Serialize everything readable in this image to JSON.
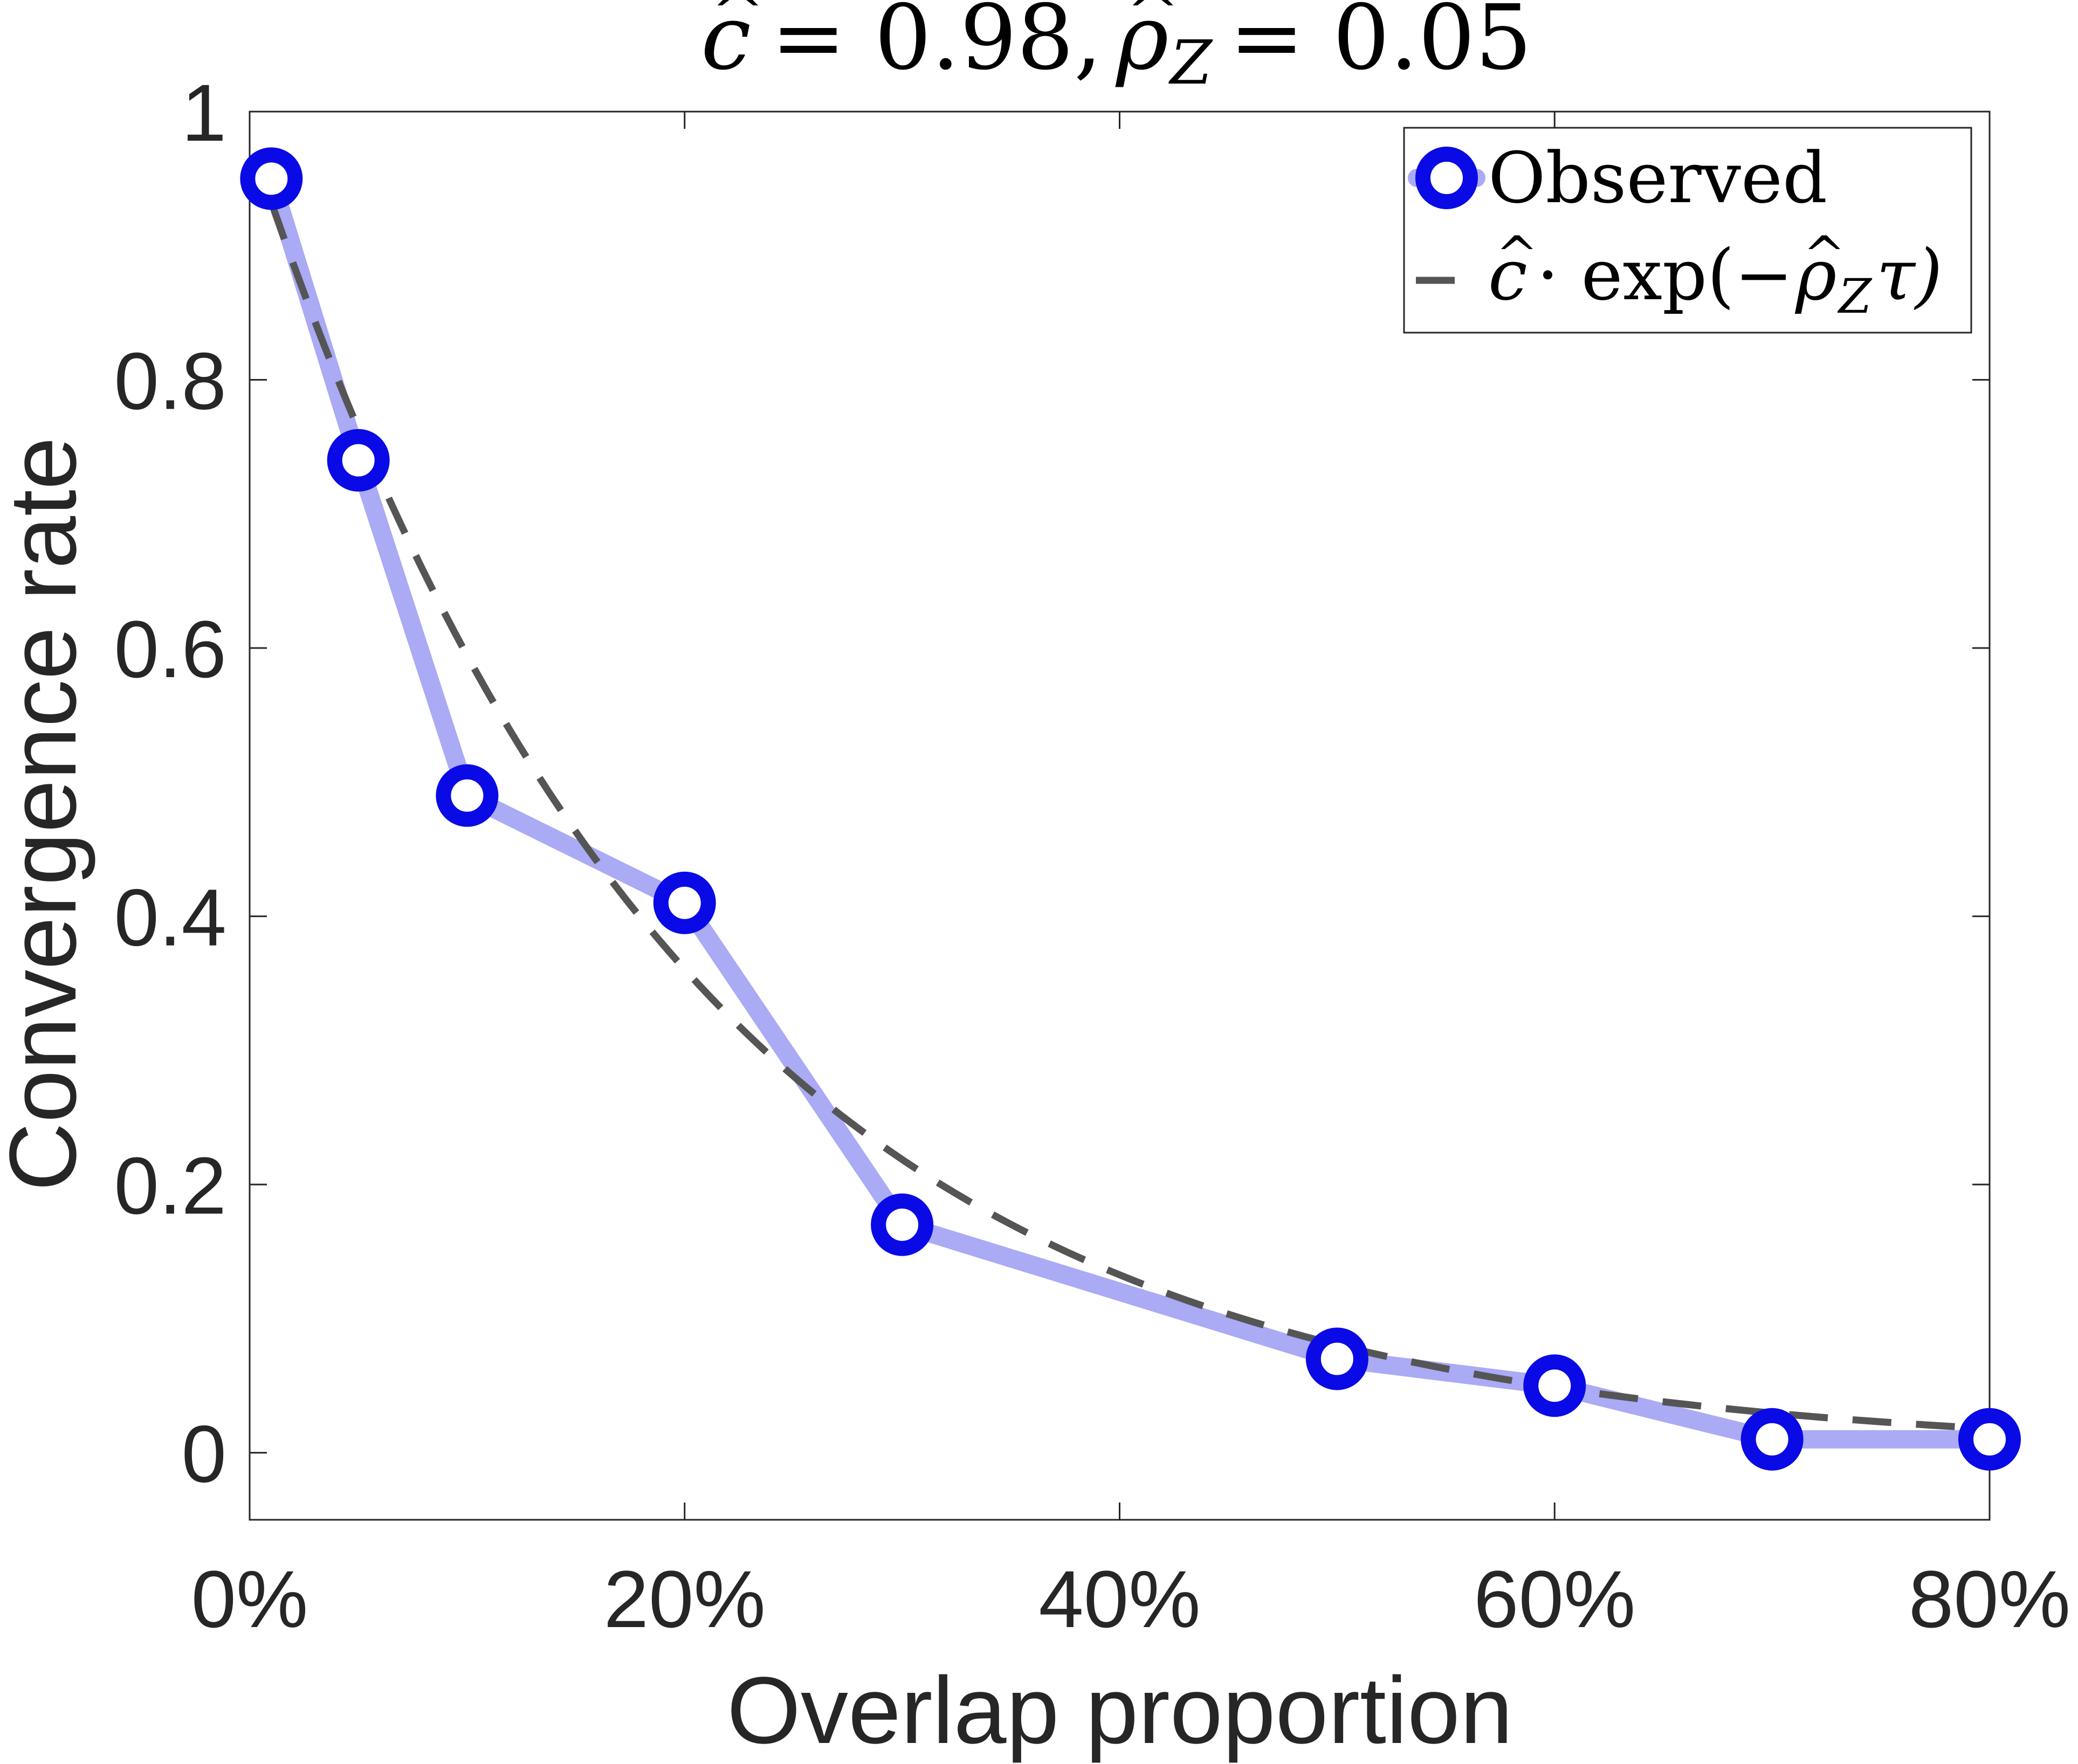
{
  "chart_data": {
    "type": "line",
    "title": "ĉ = 0.98, ρ̂_Z = 0.05",
    "title_parts": {
      "c_sym": "c",
      "eq1": "= 0.98,",
      "rho_sym": "ρ",
      "rho_sub": "Z",
      "eq2": "= 0.05"
    },
    "xlabel": "Overlap proportion",
    "ylabel": "Convergence rate",
    "xlim": [
      0,
      80
    ],
    "ylim": [
      -0.05,
      1
    ],
    "x_ticks": [
      0,
      20,
      40,
      60,
      80
    ],
    "x_tick_labels": [
      "0%",
      "20%",
      "40%",
      "60%",
      "80%"
    ],
    "y_ticks": [
      0,
      0.2,
      0.4,
      0.6,
      0.8,
      1
    ],
    "y_tick_labels": [
      "0",
      "0.2",
      "0.4",
      "0.6",
      "0.8",
      "1"
    ],
    "grid": false,
    "legend_position": "top-right",
    "legend": {
      "observed_label": "Observed",
      "fit_c": "c",
      "fit_mid": "· exp(−",
      "fit_rho": "ρ",
      "fit_sub": "Z",
      "fit_end": "τ)"
    },
    "series": [
      {
        "name": "Observed",
        "style": "solid-with-circle-markers",
        "x": [
          1,
          5,
          10,
          20,
          30,
          50,
          60,
          70,
          80
        ],
        "y": [
          0.95,
          0.74,
          0.49,
          0.41,
          0.17,
          0.07,
          0.05,
          0.01,
          0.01
        ]
      },
      {
        "name": "ĉ·exp(−ρ̂_Z τ)",
        "style": "dashed",
        "model": {
          "c": 0.98,
          "rho_z": 0.05
        },
        "x_range": [
          1,
          80
        ]
      }
    ],
    "colors": {
      "observed_line": "#aaaaf5",
      "observed_marker_edge": "#0a0ae6",
      "observed_marker_fill": "#ffffff",
      "fit_line": "#555555",
      "axes": "#262626"
    }
  }
}
